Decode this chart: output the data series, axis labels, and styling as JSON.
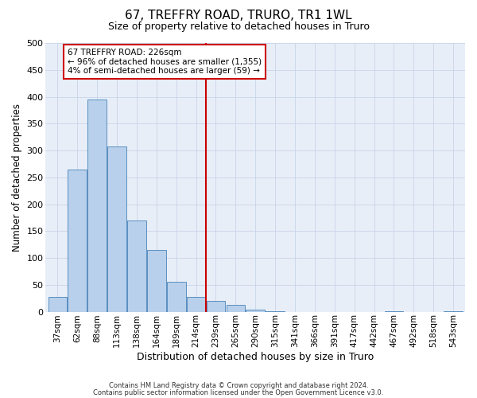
{
  "title1": "67, TREFFRY ROAD, TRURO, TR1 1WL",
  "title2": "Size of property relative to detached houses in Truro",
  "xlabel": "Distribution of detached houses by size in Truro",
  "ylabel": "Number of detached properties",
  "bar_labels": [
    "37sqm",
    "62sqm",
    "88sqm",
    "113sqm",
    "138sqm",
    "164sqm",
    "189sqm",
    "214sqm",
    "239sqm",
    "265sqm",
    "290sqm",
    "315sqm",
    "341sqm",
    "366sqm",
    "391sqm",
    "417sqm",
    "442sqm",
    "467sqm",
    "492sqm",
    "518sqm",
    "543sqm"
  ],
  "bar_values": [
    27,
    265,
    395,
    308,
    170,
    115,
    55,
    27,
    20,
    12,
    4,
    1,
    0,
    0,
    0,
    0,
    0,
    1,
    0,
    0,
    1
  ],
  "bar_color": "#b8d0eb",
  "bar_edge_color": "#5a8fc0",
  "vline_color": "#cc0000",
  "vline_x_index": 7.5,
  "annotation_line1": "67 TREFFRY ROAD: 226sqm",
  "annotation_line2": "← 96% of detached houses are smaller (1,355)",
  "annotation_line3": "4% of semi-detached houses are larger (59) →",
  "annotation_box_color": "#cc0000",
  "ylim": [
    0,
    500
  ],
  "yticks": [
    0,
    50,
    100,
    150,
    200,
    250,
    300,
    350,
    400,
    450,
    500
  ],
  "bg_color": "#e8eef8",
  "grid_color": "#c8d4e8",
  "fig_bg": "#ffffff",
  "footer1": "Contains HM Land Registry data © Crown copyright and database right 2024.",
  "footer2": "Contains public sector information licensed under the Open Government Licence v3.0."
}
